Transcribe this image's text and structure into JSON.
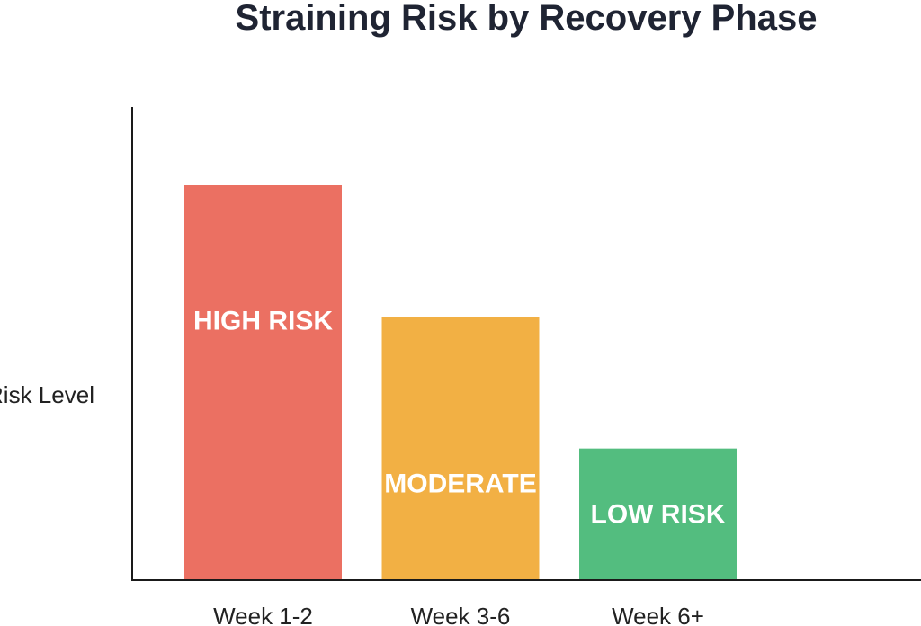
{
  "chart_data": {
    "type": "bar",
    "title": "Straining Risk by Recovery Phase",
    "xlabel": "",
    "ylabel": "Risk Level",
    "categories": [
      "Week 1-2",
      "Week 3-6",
      "Week 6+"
    ],
    "values": [
      3,
      2,
      1
    ],
    "bar_labels": [
      "HIGH RISK",
      "MODERATE",
      "LOW RISK"
    ],
    "colors": [
      "#eb7062",
      "#f2b044",
      "#53bd7f"
    ],
    "grid": false,
    "legend": "none"
  }
}
